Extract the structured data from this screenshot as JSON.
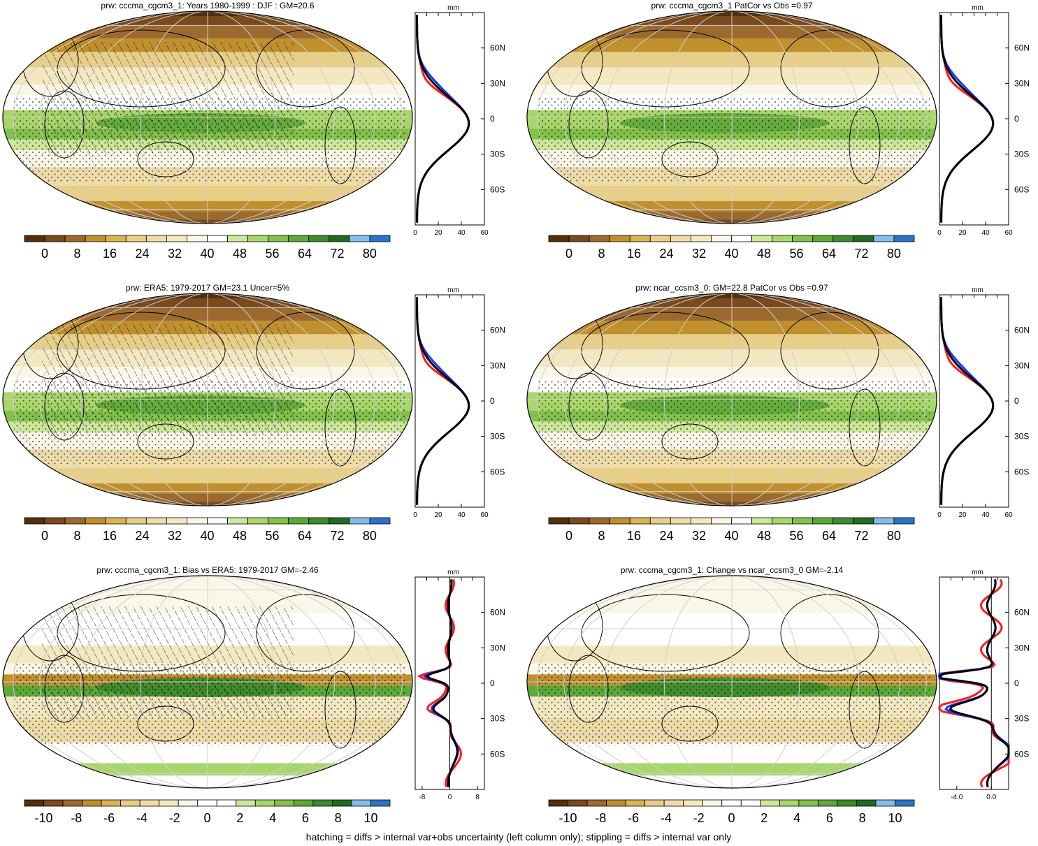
{
  "footer": "hatching = diffs > internal var+obs uncertainty (left column only); stippling = diffs > internal var only",
  "palettes": {
    "abs": [
      "#54300a",
      "#7a4a1c",
      "#9c6a2e",
      "#c0902e",
      "#d9b450",
      "#e8cf88",
      "#efdca6",
      "#f4e8c2",
      "#fbf7e8",
      "#ffffff",
      "#cde89a",
      "#a9d66a",
      "#84c04c",
      "#5ea83a",
      "#3e8a2e",
      "#226a22",
      "#82bee8",
      "#2c74c4"
    ],
    "diff": [
      "#54300a",
      "#7a4a1c",
      "#9c6a2e",
      "#c0902e",
      "#d9b450",
      "#e8cf88",
      "#efdca6",
      "#f4e8c2",
      "#fbf7e8",
      "#ffffff",
      "#ffffff",
      "#cde89a",
      "#a9d66a",
      "#84c04c",
      "#5ea83a",
      "#3e8a2e",
      "#226a22",
      "#82bee8",
      "#2c74c4"
    ]
  },
  "series_colors": {
    "model": "#000000",
    "obs": "#ff1a1a",
    "other": "#1a36ff"
  },
  "panels": [
    {
      "id": "p1",
      "title": "prw: cccma_cgcm3_1: Years 1980-1999 : DJF : GM=20.6",
      "kind": "abs",
      "colorbar_labels": [
        "0",
        "8",
        "16",
        "24",
        "32",
        "40",
        "48",
        "56",
        "64",
        "72",
        "80"
      ],
      "profile": {
        "unit": "mm",
        "xticks": [
          "0",
          "20",
          "40",
          "60"
        ],
        "xrange": [
          0,
          60
        ],
        "zero_line": false,
        "lat_labels": [
          "60N",
          "30N",
          "0",
          "30S",
          "60S"
        ]
      }
    },
    {
      "id": "p2",
      "title": "prw: cccma_cgcm3_1 PatCor vs Obs =0.97",
      "kind": "abs",
      "colorbar_labels": [
        "0",
        "8",
        "16",
        "24",
        "32",
        "40",
        "48",
        "56",
        "64",
        "72",
        "80"
      ],
      "profile": {
        "unit": "mm",
        "xticks": [
          "0",
          "20",
          "40",
          "60"
        ],
        "xrange": [
          0,
          60
        ],
        "zero_line": false,
        "lat_labels": [
          "60N",
          "30N",
          "0",
          "30S",
          "60S"
        ]
      }
    },
    {
      "id": "p3",
      "title": "prw: ERA5: 1979-2017 GM=23.1 Uncer=5%",
      "kind": "abs",
      "colorbar_labels": [
        "0",
        "8",
        "16",
        "24",
        "32",
        "40",
        "48",
        "56",
        "64",
        "72",
        "80"
      ],
      "profile": {
        "unit": "mm",
        "xticks": [
          "0",
          "20",
          "40",
          "60"
        ],
        "xrange": [
          0,
          60
        ],
        "zero_line": false,
        "lat_labels": [
          "60N",
          "30N",
          "0",
          "30S",
          "60S"
        ]
      }
    },
    {
      "id": "p4",
      "title": "prw: ncar_ccsm3_0: GM=22.8 PatCor vs Obs =0.97",
      "kind": "abs",
      "colorbar_labels": [
        "0",
        "8",
        "16",
        "24",
        "32",
        "40",
        "48",
        "56",
        "64",
        "72",
        "80"
      ],
      "profile": {
        "unit": "mm",
        "xticks": [
          "0",
          "20",
          "40",
          "60"
        ],
        "xrange": [
          0,
          60
        ],
        "zero_line": false,
        "lat_labels": [
          "60N",
          "30N",
          "0",
          "30S",
          "60S"
        ]
      }
    },
    {
      "id": "p5",
      "title": "prw: cccma_cgcm3_1: Bias vs ERA5: 1979-2017 GM=-2.46",
      "kind": "diff",
      "colorbar_labels": [
        "-10",
        "-8",
        "-6",
        "-4",
        "-2",
        "0",
        "2",
        "4",
        "6",
        "8",
        "10"
      ],
      "profile": {
        "unit": "mm",
        "xticks": [
          "-8",
          "0",
          "8"
        ],
        "xrange": [
          -10,
          10
        ],
        "zero_line": true,
        "lat_labels": [
          "60N",
          "30N",
          "0",
          "30S",
          "60S"
        ]
      }
    },
    {
      "id": "p6",
      "title": "prw: cccma_cgcm3_1: Change vs ncar_ccsm3_0 GM=-2.14",
      "kind": "diff",
      "colorbar_labels": [
        "-10",
        "-8",
        "-6",
        "-4",
        "-2",
        "0",
        "2",
        "4",
        "6",
        "8",
        "10"
      ],
      "profile": {
        "unit": "mm",
        "xticks": [
          "-4.0",
          "0.0"
        ],
        "xrange": [
          -6,
          2
        ],
        "zero_line": true,
        "lat_labels": [
          "60N",
          "30N",
          "0",
          "30S",
          "60S"
        ]
      }
    }
  ]
}
